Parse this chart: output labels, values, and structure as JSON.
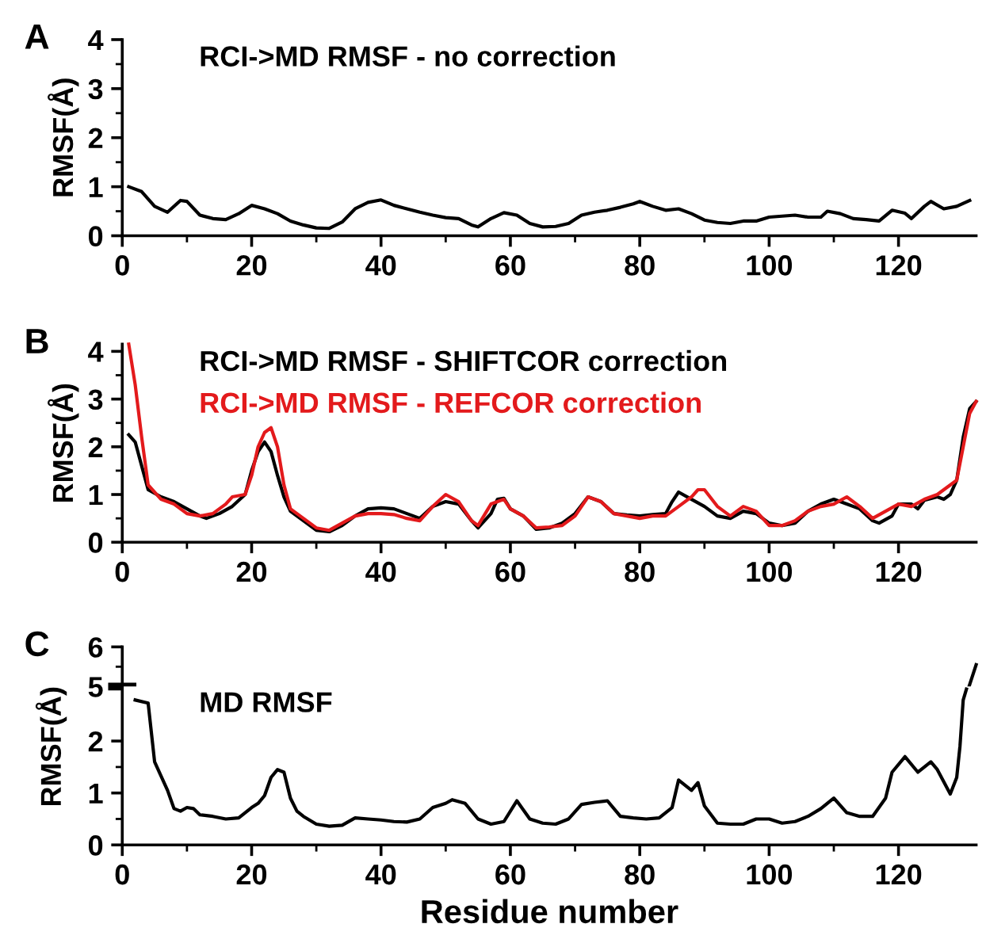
{
  "chart_data": [
    {
      "type": "line",
      "title": "A",
      "ylabel": "RMSF(Å)",
      "xlim": [
        0,
        132
      ],
      "xticks": [
        0,
        20,
        40,
        60,
        80,
        100,
        120
      ],
      "ylim": [
        0,
        4
      ],
      "yticks": [
        0,
        1,
        2,
        3,
        4
      ],
      "legend": "top left",
      "series": [
        {
          "name": "RCI->MD RMSF - no correction",
          "color": "#000000",
          "x": [
            1,
            3,
            5,
            7,
            9,
            10,
            12,
            14,
            16,
            18,
            20,
            22,
            24,
            26,
            28,
            30,
            32,
            34,
            36,
            38,
            40,
            42,
            44,
            46,
            48,
            50,
            52,
            54,
            55,
            57,
            59,
            61,
            63,
            65,
            67,
            69,
            71,
            73,
            75,
            77,
            79,
            80,
            82,
            84,
            86,
            88,
            90,
            92,
            94,
            96,
            98,
            100,
            102,
            104,
            106,
            108,
            109,
            111,
            113,
            115,
            117,
            119,
            121,
            122,
            124,
            125,
            127,
            129,
            131
          ],
          "values": [
            1.0,
            0.9,
            0.6,
            0.48,
            0.72,
            0.7,
            0.42,
            0.35,
            0.33,
            0.45,
            0.62,
            0.55,
            0.45,
            0.3,
            0.22,
            0.16,
            0.15,
            0.28,
            0.55,
            0.68,
            0.73,
            0.62,
            0.55,
            0.48,
            0.42,
            0.37,
            0.35,
            0.22,
            0.18,
            0.35,
            0.47,
            0.42,
            0.25,
            0.18,
            0.19,
            0.25,
            0.42,
            0.48,
            0.52,
            0.58,
            0.65,
            0.7,
            0.6,
            0.52,
            0.55,
            0.45,
            0.32,
            0.27,
            0.25,
            0.3,
            0.3,
            0.38,
            0.4,
            0.42,
            0.38,
            0.38,
            0.5,
            0.45,
            0.35,
            0.33,
            0.3,
            0.52,
            0.46,
            0.35,
            0.6,
            0.7,
            0.55,
            0.6,
            0.72
          ]
        }
      ]
    },
    {
      "type": "line",
      "title": "B",
      "ylabel": "RMSF(Å)",
      "xlim": [
        0,
        132
      ],
      "xticks": [
        0,
        20,
        40,
        60,
        80,
        100,
        120
      ],
      "ylim": [
        0,
        4.15
      ],
      "yticks": [
        0,
        1,
        2,
        3,
        4
      ],
      "legend": "top left",
      "series": [
        {
          "name": "RCI->MD RMSF - SHIFTCOR correction",
          "color": "#000000",
          "x": [
            1,
            2,
            3,
            4,
            6,
            8,
            10,
            12,
            13,
            15,
            17,
            19,
            20,
            21,
            22,
            23,
            24,
            25,
            26,
            28,
            30,
            32,
            34,
            36,
            38,
            40,
            42,
            44,
            46,
            48,
            50,
            52,
            54,
            55,
            57,
            58,
            59,
            60,
            62,
            64,
            66,
            68,
            70,
            72,
            74,
            76,
            78,
            80,
            82,
            84,
            85,
            86,
            88,
            90,
            92,
            94,
            96,
            98,
            100,
            102,
            104,
            106,
            108,
            110,
            112,
            114,
            116,
            117,
            119,
            120,
            122,
            123,
            124,
            126,
            127,
            128,
            129,
            130,
            131,
            132
          ],
          "values": [
            2.25,
            2.1,
            1.6,
            1.1,
            0.95,
            0.85,
            0.7,
            0.55,
            0.5,
            0.6,
            0.75,
            1.0,
            1.5,
            1.9,
            2.1,
            1.9,
            1.4,
            0.95,
            0.65,
            0.45,
            0.25,
            0.22,
            0.35,
            0.55,
            0.7,
            0.72,
            0.7,
            0.6,
            0.5,
            0.75,
            0.85,
            0.8,
            0.45,
            0.3,
            0.6,
            0.9,
            0.92,
            0.7,
            0.55,
            0.27,
            0.3,
            0.4,
            0.6,
            0.95,
            0.85,
            0.6,
            0.57,
            0.55,
            0.58,
            0.6,
            0.85,
            1.05,
            0.9,
            0.75,
            0.55,
            0.5,
            0.65,
            0.6,
            0.4,
            0.35,
            0.4,
            0.65,
            0.8,
            0.9,
            0.8,
            0.7,
            0.45,
            0.4,
            0.55,
            0.8,
            0.8,
            0.7,
            0.88,
            0.95,
            0.9,
            1.0,
            1.3,
            2.2,
            2.8,
            2.95
          ]
        },
        {
          "name": "RCI->MD RMSF - REFCOR correction",
          "color": "#e31a1c",
          "x": [
            1,
            2,
            3,
            4,
            6,
            8,
            10,
            12,
            14,
            16,
            17,
            19,
            20,
            21,
            22,
            23,
            24,
            25,
            26,
            28,
            30,
            32,
            34,
            36,
            38,
            40,
            42,
            44,
            46,
            48,
            50,
            52,
            54,
            55,
            57,
            58,
            59,
            60,
            62,
            64,
            66,
            68,
            70,
            72,
            74,
            76,
            78,
            80,
            82,
            84,
            86,
            88,
            89,
            90,
            92,
            94,
            96,
            98,
            100,
            102,
            104,
            106,
            108,
            110,
            112,
            114,
            116,
            118,
            120,
            122,
            124,
            126,
            128,
            129,
            130,
            131,
            132
          ],
          "values": [
            4.15,
            3.3,
            2.2,
            1.2,
            0.9,
            0.8,
            0.6,
            0.55,
            0.6,
            0.8,
            0.95,
            1.0,
            1.4,
            2.0,
            2.3,
            2.4,
            2.0,
            1.2,
            0.7,
            0.5,
            0.3,
            0.25,
            0.4,
            0.55,
            0.6,
            0.6,
            0.58,
            0.5,
            0.45,
            0.75,
            1.0,
            0.85,
            0.45,
            0.35,
            0.8,
            0.85,
            0.9,
            0.7,
            0.55,
            0.3,
            0.32,
            0.35,
            0.55,
            0.95,
            0.85,
            0.6,
            0.55,
            0.5,
            0.55,
            0.55,
            0.75,
            0.95,
            1.1,
            1.1,
            0.75,
            0.55,
            0.75,
            0.65,
            0.35,
            0.35,
            0.45,
            0.65,
            0.75,
            0.8,
            0.95,
            0.75,
            0.5,
            0.65,
            0.8,
            0.75,
            0.9,
            1.0,
            1.2,
            1.3,
            2.0,
            2.7,
            2.95
          ]
        }
      ]
    },
    {
      "type": "line",
      "title": "C",
      "xlim": [
        0,
        132
      ],
      "ylim": [
        5,
        6
      ],
      "yticks": [
        5,
        6
      ],
      "tick_labels": "y",
      "series": [
        {
          "color": "#000000",
          "x": [
            130.9,
            132
          ],
          "values": [
            5.0,
            5.55
          ]
        }
      ]
    },
    {
      "type": "line",
      "ylabel": "RMSF(Å)",
      "xlabel": "Residue number",
      "xlim": [
        0,
        132
      ],
      "xticks": [
        0,
        20,
        40,
        60,
        80,
        100,
        120
      ],
      "ylim": [
        0,
        3.05
      ],
      "yticks": [
        0,
        1,
        2
      ],
      "legend": "top left",
      "series": [
        {
          "name": "MD RMSF",
          "color": "#000000",
          "x": [
            2,
            4,
            5,
            7,
            8,
            9,
            10,
            11,
            12,
            14,
            16,
            18,
            20,
            21,
            22,
            23,
            24,
            25,
            26,
            27,
            28,
            30,
            32,
            34,
            36,
            38,
            40,
            42,
            44,
            46,
            48,
            50,
            51,
            53,
            55,
            57,
            59,
            61,
            63,
            65,
            67,
            69,
            71,
            73,
            75,
            77,
            79,
            81,
            83,
            85,
            86,
            88,
            89,
            90,
            92,
            94,
            96,
            98,
            100,
            102,
            104,
            106,
            108,
            110,
            112,
            114,
            116,
            118,
            119,
            121,
            123,
            125,
            126,
            128,
            129,
            129.5,
            130,
            130.5
          ],
          "values": [
            2.79,
            2.73,
            1.6,
            1.05,
            0.7,
            0.65,
            0.72,
            0.7,
            0.58,
            0.55,
            0.5,
            0.52,
            0.72,
            0.8,
            0.95,
            1.3,
            1.45,
            1.4,
            0.9,
            0.65,
            0.55,
            0.4,
            0.36,
            0.38,
            0.52,
            0.5,
            0.48,
            0.45,
            0.44,
            0.5,
            0.72,
            0.8,
            0.87,
            0.8,
            0.5,
            0.4,
            0.45,
            0.85,
            0.5,
            0.42,
            0.4,
            0.5,
            0.78,
            0.82,
            0.85,
            0.55,
            0.52,
            0.5,
            0.52,
            0.72,
            1.25,
            1.05,
            1.2,
            0.75,
            0.42,
            0.4,
            0.4,
            0.5,
            0.5,
            0.42,
            0.45,
            0.55,
            0.7,
            0.9,
            0.62,
            0.55,
            0.55,
            0.9,
            1.4,
            1.7,
            1.4,
            1.6,
            1.45,
            0.98,
            1.3,
            1.9,
            2.79,
            3.0
          ]
        }
      ]
    }
  ]
}
